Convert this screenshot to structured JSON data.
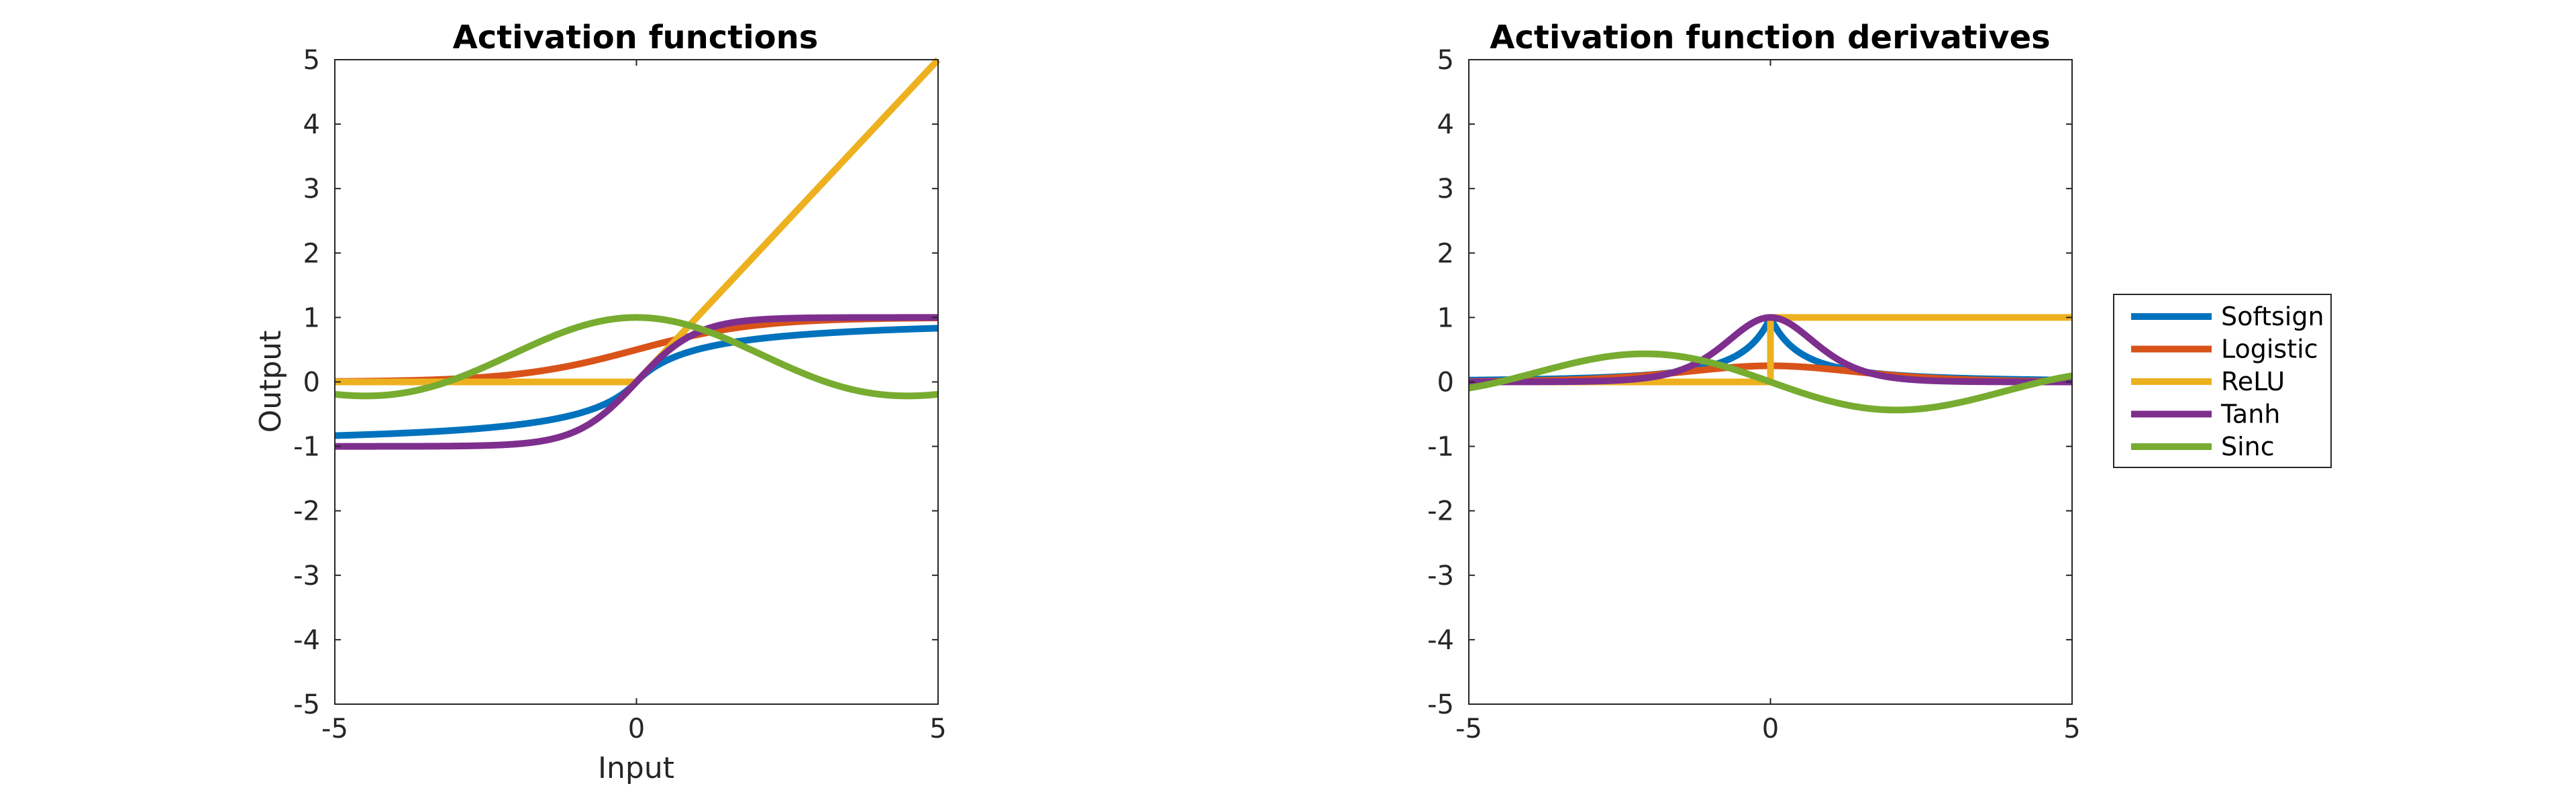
{
  "chart_data": [
    {
      "type": "line",
      "title": "Activation functions",
      "xlabel": "Input",
      "ylabel": "Output",
      "xlim": [
        -5,
        5
      ],
      "ylim": [
        -5,
        5
      ],
      "xticks": [
        -5,
        0,
        5
      ],
      "yticks": [
        -5,
        -4,
        -3,
        -2,
        -1,
        0,
        1,
        2,
        3,
        4,
        5
      ],
      "grid": false,
      "series": [
        {
          "name": "Softsign",
          "function": "softsign",
          "color": "#0072BD"
        },
        {
          "name": "Logistic",
          "function": "logistic",
          "color": "#D95319"
        },
        {
          "name": "ReLU",
          "function": "relu",
          "color": "#EDB120"
        },
        {
          "name": "Tanh",
          "function": "tanh",
          "color": "#7E2F8E"
        },
        {
          "name": "Sinc",
          "function": "sinc",
          "color": "#77AC30"
        }
      ]
    },
    {
      "type": "line",
      "title": "Activation function derivatives",
      "xlabel": "",
      "ylabel": "",
      "xlim": [
        -5,
        5
      ],
      "ylim": [
        -5,
        5
      ],
      "xticks": [
        -5,
        0,
        5
      ],
      "yticks": [
        -5,
        -4,
        -3,
        -2,
        -1,
        0,
        1,
        2,
        3,
        4,
        5
      ],
      "grid": false,
      "legend": {
        "placement": "outside-right"
      },
      "series": [
        {
          "name": "Softsign",
          "function": "d_softsign",
          "color": "#0072BD"
        },
        {
          "name": "Logistic",
          "function": "d_logistic",
          "color": "#D95319"
        },
        {
          "name": "ReLU",
          "function": "d_relu",
          "color": "#EDB120"
        },
        {
          "name": "Tanh",
          "function": "d_tanh",
          "color": "#7E2F8E"
        },
        {
          "name": "Sinc",
          "function": "d_sinc",
          "color": "#77AC30"
        }
      ]
    }
  ]
}
